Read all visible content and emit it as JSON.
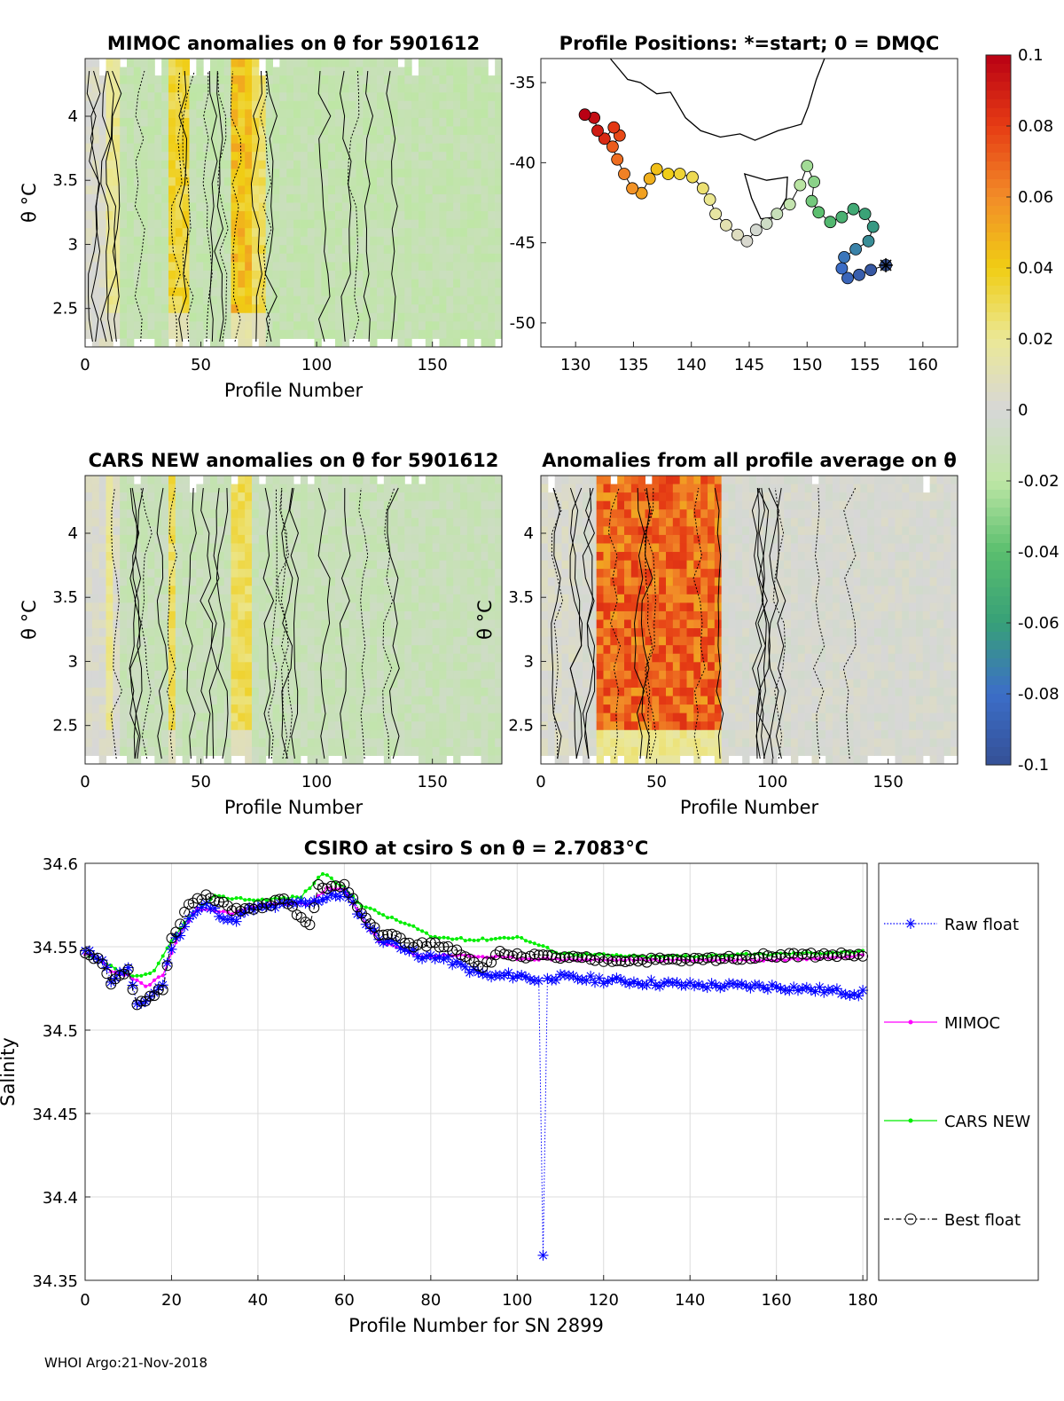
{
  "chart_data": [
    {
      "type": "heatmap",
      "title": "MIMOC anomalies on θ  for 5901612",
      "xlabel": "Profile Number",
      "ylabel": "θ °C",
      "xlim": [
        0,
        180
      ],
      "ylim": [
        2.2,
        4.45
      ],
      "xticks": [
        "0",
        "50",
        "100",
        "150"
      ],
      "yticks": [
        "2.5",
        "3",
        "3.5",
        "4"
      ],
      "warm_segments": [
        [
          10,
          14,
          0.02
        ],
        [
          35,
          45,
          0.035
        ],
        [
          62,
          72,
          0.045
        ],
        [
          72,
          78,
          0.03
        ]
      ],
      "base_anomaly": -0.015
    },
    {
      "type": "scatter",
      "title": "Profile Positions: *=start; 0 = DMQC",
      "xlim": [
        127,
        163
      ],
      "ylim": [
        -51.5,
        -33.5
      ],
      "xticks": [
        "130",
        "135",
        "140",
        "145",
        "150",
        "155",
        "160"
      ],
      "yticks": [
        "-35",
        "-40",
        "-45",
        "-50"
      ],
      "track": [
        [
          156.8,
          -46.4
        ],
        [
          155.5,
          -46.7
        ],
        [
          154.5,
          -47.0
        ],
        [
          153.5,
          -47.2
        ],
        [
          153.0,
          -46.6
        ],
        [
          153.2,
          -45.9
        ],
        [
          154.2,
          -45.4
        ],
        [
          155.3,
          -44.9
        ],
        [
          155.7,
          -44.0
        ],
        [
          155.0,
          -43.2
        ],
        [
          154.0,
          -42.9
        ],
        [
          153.0,
          -43.4
        ],
        [
          152.0,
          -43.7
        ],
        [
          151.0,
          -43.1
        ],
        [
          150.4,
          -42.4
        ],
        [
          150.6,
          -41.2
        ],
        [
          150.0,
          -40.2
        ],
        [
          149.4,
          -41.4
        ],
        [
          148.5,
          -42.6
        ],
        [
          147.4,
          -43.2
        ],
        [
          146.5,
          -43.8
        ],
        [
          145.6,
          -44.2
        ],
        [
          144.8,
          -44.9
        ],
        [
          144.0,
          -44.5
        ],
        [
          143.0,
          -43.9
        ],
        [
          142.1,
          -43.2
        ],
        [
          141.6,
          -42.3
        ],
        [
          141.0,
          -41.6
        ],
        [
          140.1,
          -40.9
        ],
        [
          139.0,
          -40.7
        ],
        [
          138.0,
          -40.7
        ],
        [
          137.0,
          -40.4
        ],
        [
          136.4,
          -41.0
        ],
        [
          135.7,
          -41.9
        ],
        [
          134.9,
          -41.6
        ],
        [
          134.2,
          -40.7
        ],
        [
          133.6,
          -39.8
        ],
        [
          133.2,
          -39.0
        ],
        [
          133.8,
          -38.3
        ],
        [
          133.3,
          -37.8
        ],
        [
          132.5,
          -38.5
        ],
        [
          131.9,
          -38.0
        ],
        [
          131.6,
          -37.2
        ],
        [
          130.8,
          -37.0
        ]
      ],
      "start_marker": [
        156.8,
        -46.4
      ]
    },
    {
      "type": "heatmap",
      "title": "CARS NEW anomalies on θ for 5901612",
      "xlabel": "Profile Number",
      "ylabel": "θ °C",
      "xlim": [
        0,
        180
      ],
      "ylim": [
        2.2,
        4.45
      ],
      "xticks": [
        "0",
        "50",
        "100",
        "150"
      ],
      "yticks": [
        "2.5",
        "3",
        "3.5",
        "4"
      ],
      "warm_segments": [
        [
          9,
          13,
          0.02
        ],
        [
          36,
          40,
          0.03
        ],
        [
          64,
          72,
          0.03
        ]
      ],
      "base_anomaly": -0.012
    },
    {
      "type": "heatmap",
      "title": "Anomalies from all profile average on θ",
      "xlabel": "Profile Number",
      "ylabel": "θ °C",
      "xlim": [
        0,
        180
      ],
      "ylim": [
        2.2,
        4.45
      ],
      "xticks": [
        "0",
        "50",
        "100",
        "150"
      ],
      "yticks": [
        "2.5",
        "3",
        "3.5",
        "4"
      ],
      "warm_segments": [
        [
          24,
          78,
          0.07
        ]
      ],
      "base_anomaly": 0.0
    },
    {
      "type": "colorbar",
      "range": [
        -0.1,
        0.1
      ],
      "ticks": [
        "0.1",
        "0.08",
        "0.06",
        "0.04",
        "0.02",
        "0",
        "-0.02",
        "-0.04",
        "-0.06",
        "-0.08",
        "-0.1"
      ]
    },
    {
      "type": "line",
      "title": "CSIRO at csiro S on θ = 2.7083°C",
      "xlabel": "Profile Number for SN 2899",
      "ylabel": "Salinity",
      "xlim": [
        0,
        181
      ],
      "ylim": [
        34.35,
        34.6
      ],
      "grid": true,
      "xticks": [
        "0",
        "20",
        "40",
        "60",
        "80",
        "100",
        "120",
        "140",
        "160",
        "180"
      ],
      "yticks": [
        "34.35",
        "34.4",
        "34.45",
        "34.5",
        "34.55",
        "34.6"
      ],
      "legend_placement": "outside-right",
      "knots": {
        "raw": [
          [
            0,
            34.547
          ],
          [
            4,
            34.543
          ],
          [
            6,
            34.53
          ],
          [
            10,
            34.537
          ],
          [
            12,
            34.514
          ],
          [
            15,
            34.52
          ],
          [
            18,
            34.528
          ],
          [
            20,
            34.55
          ],
          [
            24,
            34.567
          ],
          [
            28,
            34.575
          ],
          [
            34,
            34.565
          ],
          [
            38,
            34.572
          ],
          [
            46,
            34.575
          ],
          [
            54,
            34.578
          ],
          [
            60,
            34.582
          ],
          [
            64,
            34.568
          ],
          [
            68,
            34.555
          ],
          [
            74,
            34.55
          ],
          [
            78,
            34.542
          ],
          [
            80,
            34.545
          ],
          [
            84,
            34.542
          ],
          [
            90,
            34.535
          ],
          [
            94,
            34.532
          ],
          [
            100,
            34.533
          ],
          [
            105,
            34.53
          ],
          [
            106,
            34.365
          ],
          [
            107,
            34.532
          ],
          [
            120,
            34.53
          ],
          [
            140,
            34.527
          ],
          [
            160,
            34.526
          ],
          [
            170,
            34.524
          ],
          [
            180,
            34.522
          ]
        ],
        "mimoc": [
          [
            0,
            34.546
          ],
          [
            4,
            34.541
          ],
          [
            6,
            34.535
          ],
          [
            10,
            34.533
          ],
          [
            14,
            34.526
          ],
          [
            18,
            34.533
          ],
          [
            22,
            34.558
          ],
          [
            26,
            34.573
          ],
          [
            34,
            34.57
          ],
          [
            40,
            34.575
          ],
          [
            52,
            34.576
          ],
          [
            56,
            34.585
          ],
          [
            60,
            34.584
          ],
          [
            64,
            34.568
          ],
          [
            68,
            34.553
          ],
          [
            74,
            34.548
          ],
          [
            78,
            34.544
          ],
          [
            84,
            34.545
          ],
          [
            100,
            34.543
          ],
          [
            120,
            34.542
          ],
          [
            140,
            34.542
          ],
          [
            160,
            34.542
          ],
          [
            180,
            34.545
          ]
        ],
        "cars": [
          [
            0,
            34.545
          ],
          [
            4,
            34.541
          ],
          [
            8,
            34.535
          ],
          [
            12,
            34.532
          ],
          [
            16,
            34.535
          ],
          [
            20,
            34.553
          ],
          [
            24,
            34.568
          ],
          [
            30,
            34.58
          ],
          [
            40,
            34.578
          ],
          [
            50,
            34.58
          ],
          [
            55,
            34.594
          ],
          [
            60,
            34.585
          ],
          [
            64,
            34.575
          ],
          [
            70,
            34.568
          ],
          [
            76,
            34.562
          ],
          [
            80,
            34.556
          ],
          [
            90,
            34.554
          ],
          [
            100,
            34.556
          ],
          [
            110,
            34.546
          ],
          [
            130,
            34.544
          ],
          [
            150,
            34.545
          ],
          [
            180,
            34.547
          ]
        ],
        "best": [
          [
            0,
            34.547
          ],
          [
            4,
            34.541
          ],
          [
            6,
            34.528
          ],
          [
            10,
            34.535
          ],
          [
            12,
            34.514
          ],
          [
            15,
            34.52
          ],
          [
            18,
            34.525
          ],
          [
            20,
            34.555
          ],
          [
            24,
            34.575
          ],
          [
            28,
            34.58
          ],
          [
            34,
            34.573
          ],
          [
            38,
            34.572
          ],
          [
            46,
            34.578
          ],
          [
            52,
            34.562
          ],
          [
            54,
            34.586
          ],
          [
            60,
            34.586
          ],
          [
            64,
            34.57
          ],
          [
            68,
            34.558
          ],
          [
            72,
            34.556
          ],
          [
            76,
            34.55
          ],
          [
            80,
            34.552
          ],
          [
            86,
            34.548
          ],
          [
            92,
            34.538
          ],
          [
            96,
            34.546
          ],
          [
            100,
            34.545
          ],
          [
            120,
            34.542
          ],
          [
            140,
            34.542
          ],
          [
            160,
            34.545
          ],
          [
            180,
            34.545
          ]
        ]
      },
      "raw_spike": [
        106,
        34.365
      ],
      "series": [
        {
          "name": "Raw float",
          "color": "#0000ff",
          "marker": "*"
        },
        {
          "name": "MIMOC",
          "color": "#ff00ff",
          "marker": "."
        },
        {
          "name": "CARS NEW",
          "color": "#00ee00",
          "marker": "."
        },
        {
          "name": "Best float",
          "color": "#000000",
          "marker": "o"
        }
      ]
    }
  ],
  "footer": "WHOI Argo:21-Nov-2018"
}
